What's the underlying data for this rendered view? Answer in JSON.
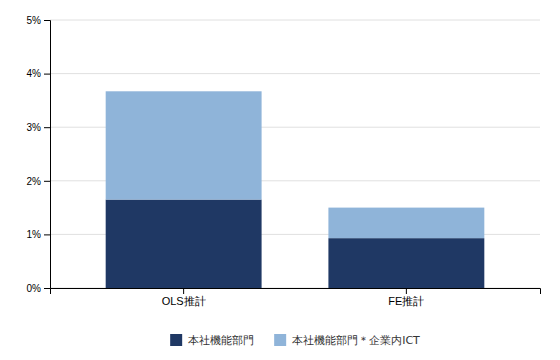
{
  "chart_data": {
    "type": "bar",
    "stacked": true,
    "categories": [
      "OLS推計",
      "FE推計"
    ],
    "series": [
      {
        "name": "本社機能部門",
        "color": "#1f3864",
        "values": [
          0.0165,
          0.0093
        ]
      },
      {
        "name": "本社機能部門＊企業内ICT",
        "color": "#8fb4d9",
        "values": [
          0.0202,
          0.0057
        ]
      }
    ],
    "ylim": [
      0,
      0.05
    ],
    "yticks": [
      {
        "value": 0,
        "label": "0%"
      },
      {
        "value": 0.01,
        "label": "1%"
      },
      {
        "value": 0.02,
        "label": "2%"
      },
      {
        "value": 0.03,
        "label": "3%"
      },
      {
        "value": 0.04,
        "label": "4%"
      },
      {
        "value": 0.05,
        "label": "5%"
      }
    ],
    "grid": true,
    "legend": "bottom"
  }
}
